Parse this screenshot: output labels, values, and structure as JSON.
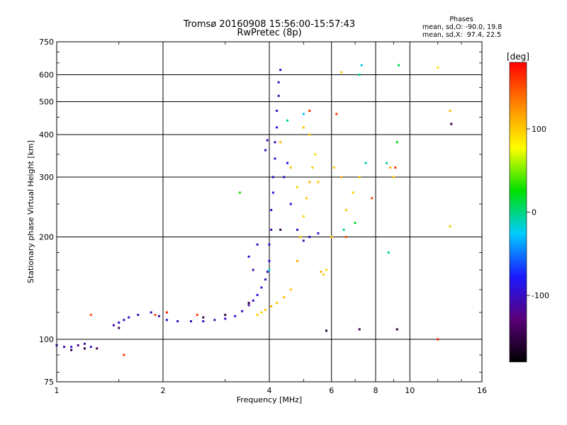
{
  "chart_data": {
    "type": "scatter",
    "title": "Tromsø 20160908 15:56:00-15:57:43",
    "subtitle": "RwPretec (8p)",
    "xlabel": "Frequency [MHz]",
    "ylabel": "Stationary phase Virtual Height [km]",
    "x_scale": "log",
    "y_scale": "log",
    "xlim": [
      1,
      16
    ],
    "ylim": [
      75,
      750
    ],
    "x_ticks": [
      1,
      2,
      4,
      6,
      8,
      10,
      16
    ],
    "y_ticks": [
      75,
      100,
      200,
      300,
      400,
      500,
      600,
      750
    ],
    "grid": true,
    "phase_info": {
      "title": "Phases",
      "line_o": "mean, sd,O: -90.0, 19.8",
      "line_x": "mean, sd,X:  97.4, 22.5"
    },
    "colorbar": {
      "label": "[deg]",
      "range": [
        -180,
        180
      ],
      "ticks": [
        100,
        0,
        -100
      ],
      "colors": [
        "#000000",
        "#5a007a",
        "#1a1aff",
        "#00ccff",
        "#00e000",
        "#ffff00",
        "#ff8800",
        "#ff0000"
      ]
    },
    "series": [
      {
        "points": [
          [
            1.0,
            96,
            -100
          ],
          [
            1.05,
            95,
            -110
          ],
          [
            1.1,
            95,
            -100
          ],
          [
            1.15,
            96,
            -120
          ],
          [
            1.2,
            97,
            -110
          ],
          [
            1.25,
            95,
            -100
          ],
          [
            1.45,
            110,
            -110
          ],
          [
            1.5,
            112,
            -100
          ],
          [
            1.55,
            114,
            -95
          ],
          [
            1.6,
            116,
            -100
          ],
          [
            1.7,
            118,
            -105
          ],
          [
            1.85,
            120,
            -100
          ],
          [
            1.95,
            117,
            -110
          ],
          [
            2.05,
            114,
            -100
          ],
          [
            2.2,
            113,
            -95
          ],
          [
            2.4,
            113,
            -105
          ],
          [
            2.6,
            113,
            -100
          ],
          [
            2.8,
            114,
            -110
          ],
          [
            3.0,
            115,
            -100
          ],
          [
            3.2,
            117,
            -90
          ],
          [
            3.35,
            121,
            -100
          ],
          [
            3.5,
            126,
            -110
          ],
          [
            3.6,
            130,
            -100
          ],
          [
            3.7,
            135,
            -90
          ],
          [
            3.8,
            142,
            -100
          ],
          [
            3.9,
            150,
            -110
          ],
          [
            3.95,
            158,
            -100
          ],
          [
            4.0,
            170,
            -90
          ],
          [
            4.0,
            190,
            -100
          ],
          [
            4.05,
            210,
            -110
          ],
          [
            4.05,
            240,
            -100
          ],
          [
            4.1,
            270,
            -95
          ],
          [
            4.1,
            300,
            -100
          ],
          [
            4.15,
            340,
            -105
          ],
          [
            4.15,
            380,
            -100
          ],
          [
            4.2,
            420,
            -90
          ],
          [
            4.2,
            470,
            -100
          ],
          [
            4.25,
            520,
            -110
          ],
          [
            4.25,
            570,
            -100
          ],
          [
            4.3,
            620,
            -95
          ],
          [
            3.9,
            360,
            -100
          ],
          [
            3.95,
            385,
            -110
          ],
          [
            4.4,
            300,
            -100
          ],
          [
            4.5,
            330,
            -90
          ],
          [
            4.6,
            250,
            -100
          ],
          [
            4.8,
            210,
            -100
          ],
          [
            5.0,
            195,
            -110
          ],
          [
            5.2,
            200,
            -100
          ],
          [
            5.5,
            205,
            -90
          ],
          [
            3.5,
            175,
            -100
          ],
          [
            3.6,
            160,
            -110
          ],
          [
            3.7,
            190,
            -100
          ]
        ]
      },
      {
        "points": [
          [
            3.7,
            118,
            100
          ],
          [
            3.8,
            120,
            95
          ],
          [
            3.9,
            122,
            100
          ],
          [
            4.05,
            125,
            110
          ],
          [
            4.2,
            128,
            100
          ],
          [
            4.4,
            133,
            105
          ],
          [
            4.6,
            140,
            100
          ],
          [
            4.8,
            170,
            110
          ],
          [
            4.9,
            200,
            100
          ],
          [
            5.0,
            230,
            95
          ],
          [
            5.1,
            260,
            100
          ],
          [
            5.2,
            290,
            110
          ],
          [
            5.3,
            320,
            100
          ],
          [
            5.4,
            350,
            90
          ],
          [
            5.0,
            420,
            105
          ],
          [
            5.2,
            400,
            100
          ],
          [
            5.6,
            158,
            110
          ],
          [
            5.7,
            155,
            100
          ],
          [
            5.8,
            160,
            95
          ],
          [
            6.1,
            320,
            100
          ],
          [
            6.4,
            300,
            110
          ],
          [
            6.6,
            240,
            100
          ],
          [
            6.9,
            270,
            95
          ],
          [
            7.2,
            300,
            100
          ],
          [
            8.8,
            320,
            110
          ],
          [
            9.0,
            300,
            100
          ],
          [
            13.0,
            470,
            105
          ],
          [
            13.0,
            215,
            100
          ],
          [
            12.0,
            630,
            90
          ],
          [
            6.4,
            610,
            100
          ],
          [
            4.3,
            380,
            110
          ],
          [
            4.6,
            320,
            100
          ],
          [
            4.8,
            280,
            95
          ],
          [
            5.5,
            290,
            105
          ],
          [
            6.0,
            200,
            100
          ]
        ]
      },
      {
        "points": [
          [
            7.2,
            600,
            0
          ],
          [
            7.3,
            640,
            -20
          ],
          [
            9.3,
            640,
            10
          ],
          [
            6.5,
            210,
            -10
          ],
          [
            7.0,
            220,
            20
          ],
          [
            4.5,
            440,
            0
          ],
          [
            5.0,
            460,
            -30
          ],
          [
            8.6,
            330,
            -5
          ],
          [
            9.2,
            380,
            20
          ],
          [
            7.5,
            330,
            -10
          ],
          [
            3.3,
            270,
            30
          ],
          [
            4.0,
            160,
            -20
          ],
          [
            8.7,
            180,
            0
          ]
        ]
      },
      {
        "points": [
          [
            1.1,
            93,
            -150
          ],
          [
            1.2,
            94,
            -160
          ],
          [
            1.3,
            94,
            -150
          ],
          [
            1.5,
            108,
            -145
          ],
          [
            2.6,
            116,
            -150
          ],
          [
            3.0,
            118,
            -155
          ],
          [
            3.5,
            128,
            -150
          ],
          [
            5.8,
            106,
            -160
          ],
          [
            7.2,
            107,
            -150
          ],
          [
            9.2,
            107,
            -155
          ],
          [
            13.1,
            430,
            -150
          ],
          [
            4.3,
            210,
            -155
          ]
        ]
      },
      {
        "points": [
          [
            1.25,
            118,
            150
          ],
          [
            1.55,
            90,
            160
          ],
          [
            1.9,
            118,
            150
          ],
          [
            2.05,
            120,
            170
          ],
          [
            2.5,
            118,
            155
          ],
          [
            6.2,
            460,
            160
          ],
          [
            6.6,
            200,
            150
          ],
          [
            5.2,
            470,
            165
          ],
          [
            7.8,
            260,
            150
          ],
          [
            9.1,
            320,
            160
          ],
          [
            12.0,
            100,
            170
          ]
        ]
      }
    ]
  }
}
